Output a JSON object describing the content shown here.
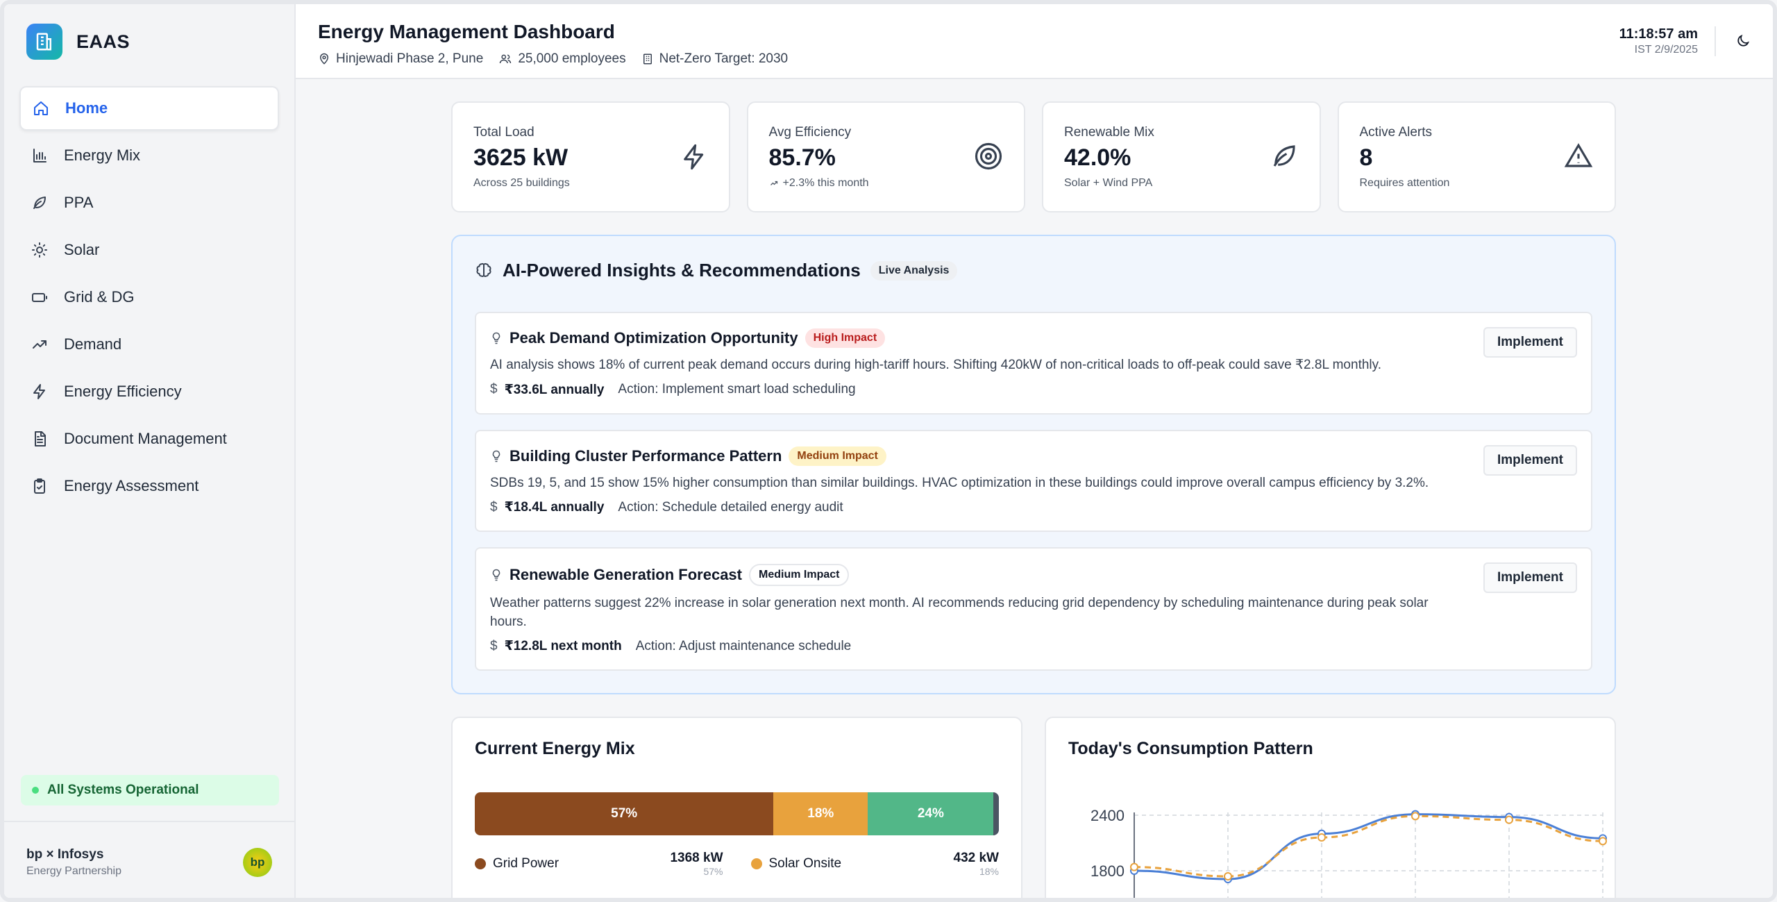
{
  "brand": {
    "name": "EAAS"
  },
  "sidebar": {
    "items": [
      {
        "label": "Home",
        "icon": "home-icon",
        "active": true
      },
      {
        "label": "Energy Mix",
        "icon": "bar-chart-icon"
      },
      {
        "label": "PPA",
        "icon": "leaf-icon"
      },
      {
        "label": "Solar",
        "icon": "sun-icon"
      },
      {
        "label": "Grid & DG",
        "icon": "battery-icon"
      },
      {
        "label": "Demand",
        "icon": "trending-up-icon"
      },
      {
        "label": "Energy Efficiency",
        "icon": "zap-icon"
      },
      {
        "label": "Document Management",
        "icon": "file-icon"
      },
      {
        "label": "Energy Assessment",
        "icon": "clipboard-icon"
      }
    ],
    "status": "All Systems Operational",
    "footer": {
      "title": "bp × Infosys",
      "subtitle": "Energy Partnership",
      "badge": "bp"
    }
  },
  "header": {
    "title": "Energy Management Dashboard",
    "location": "Hinjewadi Phase 2, Pune",
    "employees": "25,000 employees",
    "target": "Net-Zero Target: 2030",
    "time": "11:18:57 am",
    "date": "IST 2/9/2025"
  },
  "kpis": [
    {
      "label": "Total Load",
      "value": "3625 kW",
      "sub": "Across 25 buildings",
      "icon": "zap-icon"
    },
    {
      "label": "Avg Efficiency",
      "value": "85.7%",
      "sub": "+2.3% this month",
      "icon": "target-icon"
    },
    {
      "label": "Renewable Mix",
      "value": "42.0%",
      "sub": "Solar + Wind PPA",
      "icon": "leaf-icon"
    },
    {
      "label": "Active Alerts",
      "value": "8",
      "sub": "Requires attention",
      "icon": "alert-triangle-icon"
    }
  ],
  "insights": {
    "title": "AI-Powered Insights & Recommendations",
    "badge": "Live Analysis",
    "button_label": "Implement",
    "items": [
      {
        "title": "Peak Demand Optimization Opportunity",
        "impact": "High Impact",
        "desc": "AI analysis shows 18% of current peak demand occurs during high-tariff hours. Shifting 420kW of non-critical loads to off-peak could save ₹2.8L monthly.",
        "savings": "₹33.6L annually",
        "action": "Action: Implement smart load scheduling"
      },
      {
        "title": "Building Cluster Performance Pattern",
        "impact": "Medium Impact",
        "desc": "SDBs 19, 5, and 15 show 15% higher consumption than similar buildings. HVAC optimization in these buildings could improve overall campus efficiency by 3.2%.",
        "savings": "₹18.4L annually",
        "action": "Action: Schedule detailed energy audit"
      },
      {
        "title": "Renewable Generation Forecast",
        "impact": "Medium Impact",
        "desc": "Weather patterns suggest 22% increase in solar generation next month. AI recommends reducing grid dependency by scheduling maintenance during peak solar hours.",
        "savings": "₹12.8L next month",
        "action": "Action: Adjust maintenance schedule"
      }
    ]
  },
  "energy_mix": {
    "title": "Current Energy Mix",
    "segments": [
      {
        "label": "57%",
        "value": 57,
        "color": "#8b4a1f"
      },
      {
        "label": "18%",
        "value": 18,
        "color": "#e8a23d"
      },
      {
        "label": "24%",
        "value": 24,
        "color": "#52b788"
      },
      {
        "label": "",
        "value": 1,
        "color": "#4b5563"
      }
    ],
    "legend": [
      {
        "name": "Grid Power",
        "kw": "1368 kW",
        "pct": "57%",
        "color": "#8b4a1f"
      },
      {
        "name": "Solar Onsite",
        "kw": "432 kW",
        "pct": "18%",
        "color": "#e8a23d"
      }
    ]
  },
  "consumption": {
    "title": "Today's Consumption Pattern"
  },
  "chart_data": {
    "type": "line",
    "title": "Today's Consumption Pattern",
    "x": [
      0,
      1,
      2,
      3,
      4,
      5
    ],
    "yticks": [
      "2400",
      "1800"
    ],
    "series": [
      {
        "values": [
          1800,
          1710,
          2200,
          2410,
          2380,
          2150
        ],
        "color": "#4a7fd6",
        "style": "solid"
      },
      {
        "values": [
          1840,
          1740,
          2160,
          2390,
          2350,
          2120
        ],
        "color": "#e8a23d",
        "style": "dashed"
      }
    ],
    "ylim": [
      1700,
      2450
    ],
    "grid": true
  }
}
